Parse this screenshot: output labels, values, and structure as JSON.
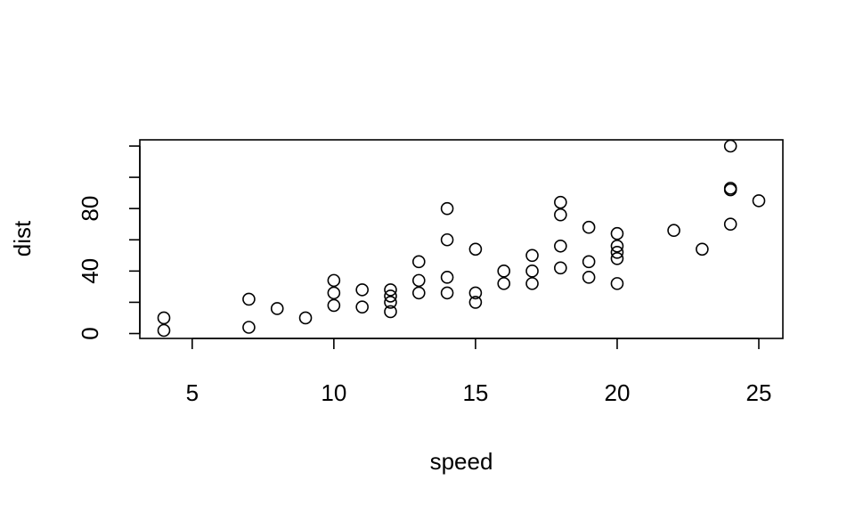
{
  "chart_data": {
    "type": "scatter",
    "title": "",
    "xlabel": "speed",
    "ylabel": "dist",
    "xlim": [
      4,
      25
    ],
    "ylim": [
      2,
      120
    ],
    "x_ticks": [
      5,
      10,
      15,
      20,
      25
    ],
    "y_ticks": [
      0,
      20,
      40,
      60,
      80,
      100,
      120
    ],
    "y_tick_labels": [
      "0",
      "",
      "40",
      "",
      "80",
      "",
      ""
    ],
    "grid": false,
    "series": [
      {
        "points": [
          [
            4,
            2
          ],
          [
            4,
            10
          ],
          [
            7,
            4
          ],
          [
            7,
            22
          ],
          [
            8,
            16
          ],
          [
            9,
            10
          ],
          [
            10,
            18
          ],
          [
            10,
            26
          ],
          [
            10,
            34
          ],
          [
            11,
            17
          ],
          [
            11,
            28
          ],
          [
            12,
            14
          ],
          [
            12,
            20
          ],
          [
            12,
            24
          ],
          [
            12,
            28
          ],
          [
            13,
            26
          ],
          [
            13,
            34
          ],
          [
            13,
            46
          ],
          [
            14,
            26
          ],
          [
            14,
            36
          ],
          [
            14,
            60
          ],
          [
            14,
            80
          ],
          [
            15,
            20
          ],
          [
            15,
            26
          ],
          [
            15,
            54
          ],
          [
            16,
            32
          ],
          [
            16,
            40
          ],
          [
            17,
            32
          ],
          [
            17,
            40
          ],
          [
            17,
            50
          ],
          [
            18,
            42
          ],
          [
            18,
            56
          ],
          [
            18,
            76
          ],
          [
            18,
            84
          ],
          [
            19,
            36
          ],
          [
            19,
            46
          ],
          [
            19,
            68
          ],
          [
            20,
            32
          ],
          [
            20,
            48
          ],
          [
            20,
            52
          ],
          [
            20,
            56
          ],
          [
            20,
            64
          ],
          [
            22,
            66
          ],
          [
            23,
            54
          ],
          [
            24,
            70
          ],
          [
            24,
            92
          ],
          [
            24,
            93
          ],
          [
            24,
            120
          ],
          [
            25,
            85
          ]
        ]
      }
    ]
  }
}
